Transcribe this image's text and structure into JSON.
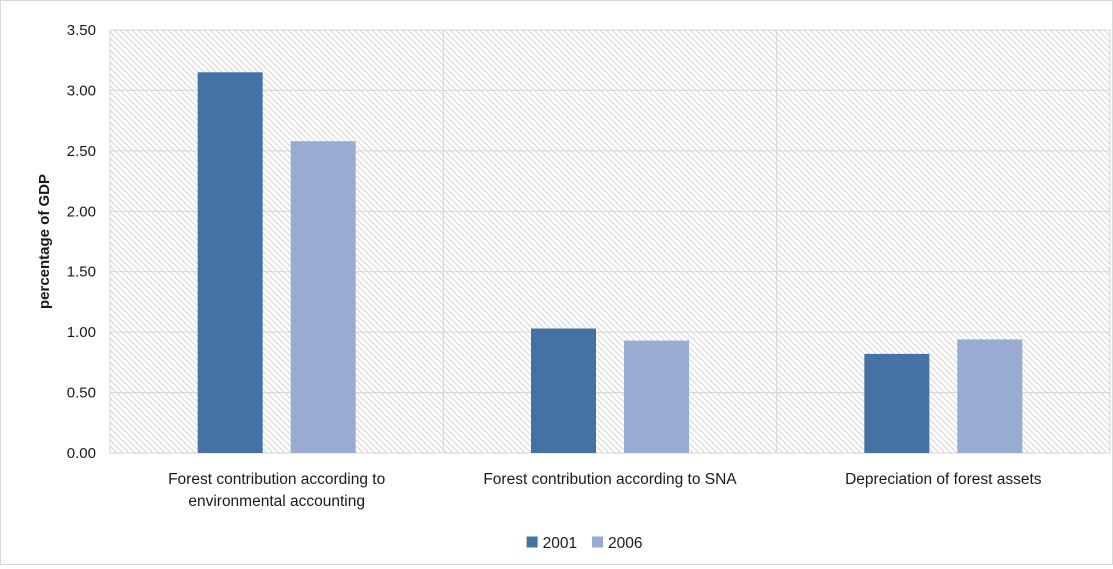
{
  "chart_data": {
    "type": "bar",
    "ylabel": "percentage of GDP",
    "ylim": [
      0,
      3.5
    ],
    "ytick_step": 0.5,
    "ytick_decimals": 2,
    "grid": true,
    "legend_position": "bottom",
    "categories": [
      [
        "Forest contribution according to",
        "environmental accounting"
      ],
      [
        "Forest contribution according to SNA"
      ],
      [
        "Depreciation of forest assets"
      ]
    ],
    "series": [
      {
        "name": "2001",
        "color": "#4472a4",
        "values": [
          3.15,
          1.03,
          0.82
        ]
      },
      {
        "name": "2006",
        "color": "#97abd3",
        "values": [
          2.58,
          0.93,
          0.94
        ]
      }
    ]
  }
}
